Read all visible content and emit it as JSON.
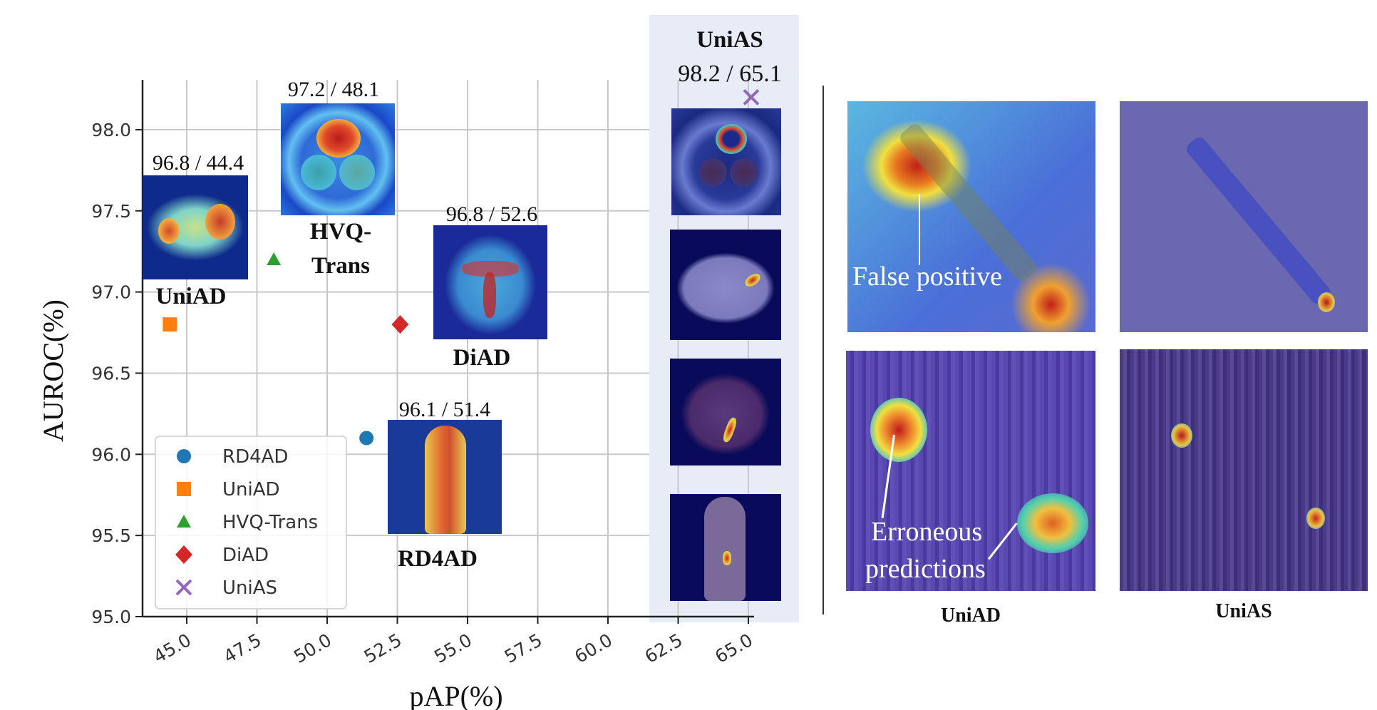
{
  "chart_data": {
    "type": "scatter",
    "title": "",
    "xlabel": "pAP(%)",
    "ylabel": "AUROC(%)",
    "xlim": [
      44.0,
      65.4
    ],
    "ylim": [
      95.0,
      98.35
    ],
    "xticks": [
      "45.0",
      "47.5",
      "50.0",
      "52.5",
      "55.0",
      "57.5",
      "60.0",
      "62.5",
      "65.0"
    ],
    "xtick_values": [
      45.0,
      47.5,
      50.0,
      52.5,
      55.0,
      57.5,
      60.0,
      62.5,
      65.0
    ],
    "yticks": [
      "95.0",
      "95.5",
      "96.0",
      "96.5",
      "97.0",
      "97.5",
      "98.0"
    ],
    "ytick_values": [
      95.0,
      95.5,
      96.0,
      96.5,
      97.0,
      97.5,
      98.0
    ],
    "grid": true,
    "legend_position": "bottom-left",
    "series": [
      {
        "name": "RD4AD",
        "marker": "circle",
        "color": "#1f77b4",
        "x": 51.4,
        "y": 96.1,
        "label": "96.1 / 51.4"
      },
      {
        "name": "UniAD",
        "marker": "square",
        "color": "#ff7f0e",
        "x": 44.4,
        "y": 96.8,
        "label": "96.8 / 44.4"
      },
      {
        "name": "HVQ-Trans",
        "marker": "triangle",
        "color": "#2ca02c",
        "x": 48.1,
        "y": 97.2,
        "label": "97.2 / 48.1"
      },
      {
        "name": "DiAD",
        "marker": "diamond",
        "color": "#d62728",
        "x": 52.6,
        "y": 96.8,
        "label": "96.8 / 52.6"
      },
      {
        "name": "UniAS",
        "marker": "x",
        "color": "#9467bd",
        "x": 65.1,
        "y": 98.2,
        "label": "98.2 / 65.1"
      }
    ],
    "annotations": [
      {
        "method": "UniAD",
        "value_text": "96.8 / 44.4",
        "name_text": "UniAD"
      },
      {
        "method": "HVQ-Trans",
        "value_text": "97.2 / 48.1",
        "name_text_1": "HVQ-",
        "name_text_2": "Trans"
      },
      {
        "method": "DiAD",
        "value_text": "96.8 / 52.6",
        "name_text": "DiAD"
      },
      {
        "method": "RD4AD",
        "value_text": "96.1 / 51.4",
        "name_text": "RD4AD"
      },
      {
        "method": "UniAS",
        "value_text": "98.2 / 65.1",
        "name_text": "UniAS"
      }
    ]
  },
  "highlight_panel": {
    "title": "UniAS",
    "value_text": "98.2 / 65.1",
    "background": "#e8ecf6"
  },
  "comparison": {
    "left_caption": "UniAD",
    "right_caption": "UniAS",
    "false_positive_label": "False positive",
    "erroneous_label_1": "Erroneous",
    "erroneous_label_2": "predictions"
  }
}
